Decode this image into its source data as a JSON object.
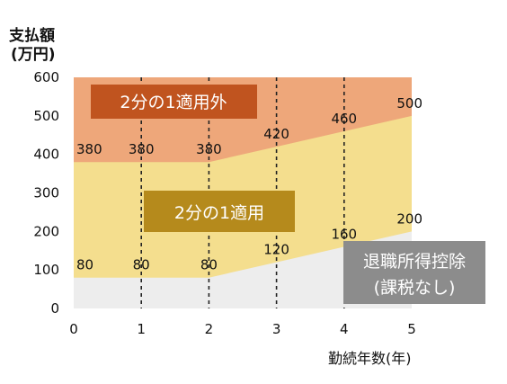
{
  "chart_data": {
    "type": "area",
    "ylabel_line1": "支払額",
    "ylabel_line2": "(万円)",
    "xlabel": "勤続年数(年)",
    "xlim": [
      0,
      5
    ],
    "ylim": [
      0,
      600
    ],
    "x_ticks": [
      0,
      1,
      2,
      3,
      4,
      5
    ],
    "y_ticks": [
      0,
      100,
      200,
      300,
      400,
      500,
      600
    ],
    "x": [
      0,
      1,
      2,
      3,
      4,
      5
    ],
    "series": [
      {
        "name": "退職所得控除(課税なし)",
        "values": [
          80,
          80,
          80,
          120,
          160,
          200
        ]
      },
      {
        "name": "2分の1適用",
        "values": [
          380,
          380,
          380,
          420,
          460,
          500
        ]
      },
      {
        "name": "2分の1適用外",
        "values": [
          600,
          600,
          600,
          600,
          600,
          600
        ]
      }
    ],
    "labels_deduction": [
      "80",
      "80",
      "80",
      "120",
      "160",
      "200"
    ],
    "labels_half": [
      "380",
      "380",
      "380",
      "420",
      "460",
      "500"
    ],
    "box_outside": "2分の1適用外",
    "box_half": "2分の1適用",
    "box_deduction_line1": "退職所得控除",
    "box_deduction_line2": "(課税なし)",
    "colors": {
      "outside_area": "#eea77a",
      "half_area": "#f4de8e",
      "deduction_area": "#ededed",
      "box_outside": "#c0541f",
      "box_half": "#b58a1c",
      "box_deduction": "#8c8c8c"
    }
  }
}
